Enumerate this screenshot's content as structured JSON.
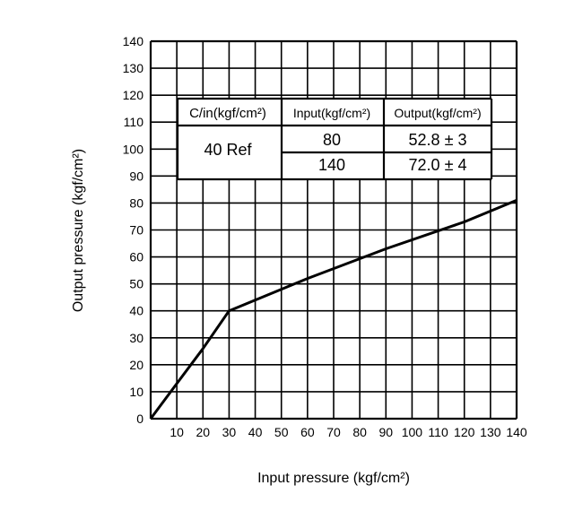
{
  "chart_data": {
    "type": "line",
    "xlabel": "Input pressure (kgf/cm²)",
    "ylabel": "Output pressure (kgf/cm²)",
    "xlim": [
      0,
      140
    ],
    "ylim": [
      0,
      140
    ],
    "grid": true,
    "x_ticks": [
      "10",
      "20",
      "30",
      "40",
      "50",
      "60",
      "70",
      "80",
      "90",
      "100",
      "110",
      "120",
      "130",
      "140"
    ],
    "y_ticks": [
      "0",
      "10",
      "20",
      "30",
      "40",
      "50",
      "60",
      "70",
      "80",
      "90",
      "100",
      "110",
      "120",
      "130",
      "140"
    ],
    "series": [
      {
        "x": [
          0,
          10,
          20,
          30,
          60,
          90,
          120,
          140
        ],
        "y": [
          0,
          13,
          26,
          40,
          52,
          63,
          73,
          81
        ]
      }
    ],
    "table": {
      "headers": [
        "C/in(kgf/cm²)",
        "Input(kgf/cm²)",
        "Output(kgf/cm²)"
      ],
      "ref_label": "40 Ref",
      "rows": [
        {
          "input": "80",
          "output": "52.8 ± 3"
        },
        {
          "input": "140",
          "output": "72.0 ± 4"
        }
      ]
    }
  }
}
